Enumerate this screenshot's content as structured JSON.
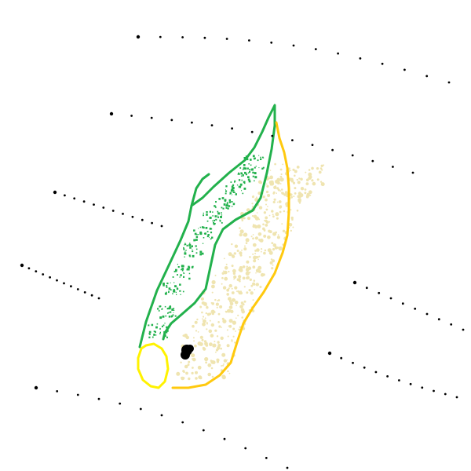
{
  "canvas": {
    "background": "#ffffff"
  },
  "colors": {
    "green_outline": "#22b14c",
    "green_speckle": "#22b14c",
    "orange_outline": "#ffc90e",
    "beige_speckle": "#efe4b0",
    "yellow_loop": "#fff200",
    "black_blob": "#000000",
    "dots": "#000000"
  },
  "shapes": {
    "green_region": "green-leaf-outline",
    "orange_region": "orange-outline",
    "yellow_region": "yellow-loop",
    "marker": "black-blob"
  }
}
